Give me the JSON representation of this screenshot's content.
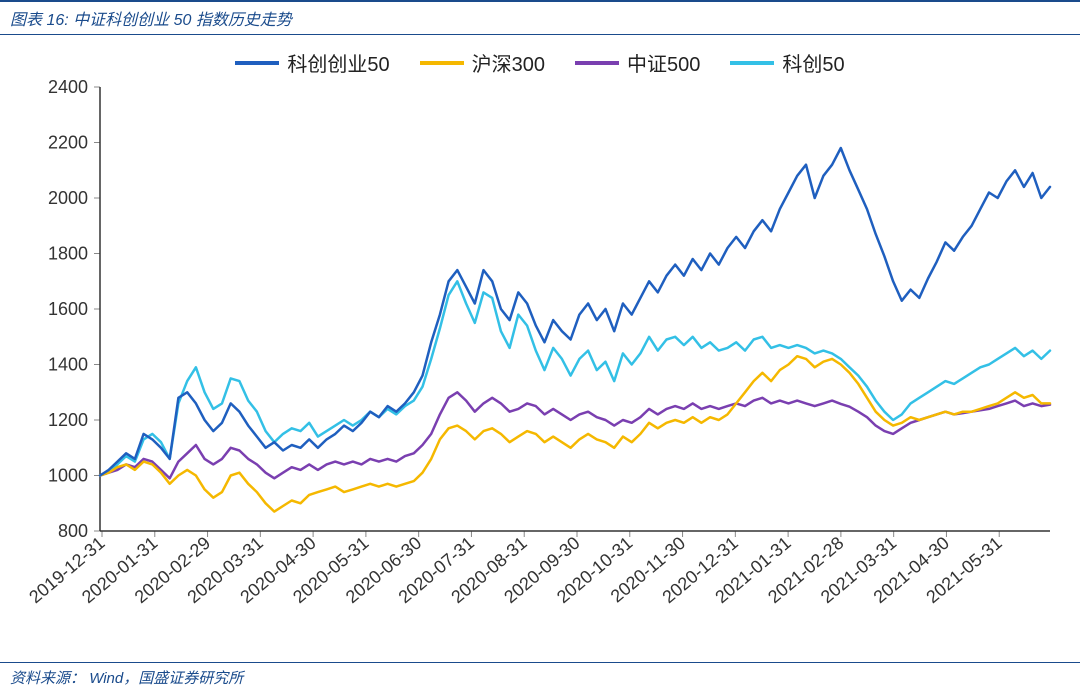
{
  "header": {
    "prefix": "图表 16:",
    "title": "中证科创创业 50 指数历史走势"
  },
  "footer": {
    "label": "资料来源：",
    "source": "Wind，国盛证券研究所"
  },
  "chart": {
    "type": "line",
    "background_color": "#ffffff",
    "axis_color": "#333333",
    "tick_color": "#7a7a7a",
    "label_fontsize": 18,
    "legend_fontsize": 20,
    "line_width": 2.5,
    "y": {
      "min": 800,
      "max": 2400,
      "step": 200
    },
    "x_labels": [
      "2019-12-31",
      "2020-01-31",
      "2020-02-29",
      "2020-03-31",
      "2020-04-30",
      "2020-05-31",
      "2020-06-30",
      "2020-07-31",
      "2020-08-31",
      "2020-09-30",
      "2020-10-31",
      "2020-11-30",
      "2020-12-31",
      "2021-01-31",
      "2021-02-28",
      "2021-03-31",
      "2021-04-30",
      "2021-05-31"
    ],
    "series": [
      {
        "name": "科创创业50",
        "color": "#1f5fbf",
        "values": [
          1000,
          1020,
          1050,
          1080,
          1060,
          1150,
          1130,
          1100,
          1060,
          1280,
          1300,
          1260,
          1200,
          1160,
          1190,
          1260,
          1230,
          1180,
          1140,
          1100,
          1120,
          1090,
          1110,
          1100,
          1130,
          1100,
          1130,
          1150,
          1180,
          1160,
          1190,
          1230,
          1210,
          1250,
          1230,
          1260,
          1300,
          1360,
          1480,
          1580,
          1700,
          1740,
          1680,
          1620,
          1740,
          1700,
          1600,
          1560,
          1660,
          1620,
          1540,
          1480,
          1560,
          1520,
          1490,
          1580,
          1620,
          1560,
          1600,
          1520,
          1620,
          1580,
          1640,
          1700,
          1660,
          1720,
          1760,
          1720,
          1780,
          1740,
          1800,
          1760,
          1820,
          1860,
          1820,
          1880,
          1920,
          1880,
          1960,
          2020,
          2080,
          2120,
          2000,
          2080,
          2120,
          2180,
          2100,
          2030,
          1960,
          1870,
          1790,
          1700,
          1630,
          1670,
          1640,
          1710,
          1770,
          1840,
          1810,
          1860,
          1900,
          1960,
          2020,
          2000,
          2060,
          2100,
          2040,
          2090,
          2000,
          2040
        ]
      },
      {
        "name": "沪深300",
        "color": "#f5b800",
        "values": [
          1000,
          1010,
          1030,
          1040,
          1020,
          1050,
          1040,
          1010,
          970,
          1000,
          1020,
          1000,
          950,
          920,
          940,
          1000,
          1010,
          970,
          940,
          900,
          870,
          890,
          910,
          900,
          930,
          940,
          950,
          960,
          940,
          950,
          960,
          970,
          960,
          970,
          960,
          970,
          980,
          1010,
          1060,
          1130,
          1170,
          1180,
          1160,
          1130,
          1160,
          1170,
          1150,
          1120,
          1140,
          1160,
          1150,
          1120,
          1140,
          1120,
          1100,
          1130,
          1150,
          1130,
          1120,
          1100,
          1140,
          1120,
          1150,
          1190,
          1170,
          1190,
          1200,
          1190,
          1210,
          1190,
          1210,
          1200,
          1220,
          1260,
          1300,
          1340,
          1370,
          1340,
          1380,
          1400,
          1430,
          1420,
          1390,
          1410,
          1420,
          1400,
          1370,
          1330,
          1280,
          1230,
          1200,
          1180,
          1190,
          1210,
          1200,
          1210,
          1220,
          1230,
          1220,
          1230,
          1230,
          1240,
          1250,
          1260,
          1280,
          1300,
          1280,
          1290,
          1260,
          1260
        ]
      },
      {
        "name": "中证500",
        "color": "#7a3fb0",
        "values": [
          1000,
          1010,
          1020,
          1040,
          1030,
          1060,
          1050,
          1020,
          990,
          1050,
          1080,
          1110,
          1060,
          1040,
          1060,
          1100,
          1090,
          1060,
          1040,
          1010,
          990,
          1010,
          1030,
          1020,
          1040,
          1020,
          1040,
          1050,
          1040,
          1050,
          1040,
          1060,
          1050,
          1060,
          1050,
          1070,
          1080,
          1110,
          1150,
          1220,
          1280,
          1300,
          1270,
          1230,
          1260,
          1280,
          1260,
          1230,
          1240,
          1260,
          1250,
          1220,
          1240,
          1220,
          1200,
          1220,
          1230,
          1210,
          1200,
          1180,
          1200,
          1190,
          1210,
          1240,
          1220,
          1240,
          1250,
          1240,
          1260,
          1240,
          1250,
          1240,
          1250,
          1260,
          1250,
          1270,
          1280,
          1260,
          1270,
          1260,
          1270,
          1260,
          1250,
          1260,
          1270,
          1258,
          1248,
          1230,
          1210,
          1180,
          1160,
          1150,
          1170,
          1190,
          1200,
          1210,
          1220,
          1230,
          1220,
          1225,
          1230,
          1235,
          1240,
          1250,
          1260,
          1270,
          1250,
          1260,
          1250,
          1255
        ]
      },
      {
        "name": "科创50",
        "color": "#33c0e6",
        "values": [
          1000,
          1010,
          1040,
          1070,
          1050,
          1130,
          1150,
          1120,
          1060,
          1260,
          1340,
          1390,
          1300,
          1240,
          1260,
          1350,
          1340,
          1270,
          1230,
          1160,
          1120,
          1150,
          1170,
          1160,
          1190,
          1140,
          1160,
          1180,
          1200,
          1180,
          1200,
          1230,
          1210,
          1240,
          1220,
          1250,
          1270,
          1320,
          1420,
          1530,
          1650,
          1700,
          1620,
          1550,
          1660,
          1640,
          1520,
          1460,
          1580,
          1540,
          1450,
          1380,
          1460,
          1420,
          1360,
          1420,
          1450,
          1380,
          1410,
          1340,
          1440,
          1400,
          1440,
          1500,
          1450,
          1490,
          1500,
          1470,
          1500,
          1460,
          1480,
          1450,
          1460,
          1480,
          1450,
          1490,
          1500,
          1460,
          1470,
          1460,
          1470,
          1460,
          1440,
          1450,
          1440,
          1420,
          1390,
          1360,
          1320,
          1270,
          1230,
          1200,
          1220,
          1260,
          1280,
          1300,
          1320,
          1340,
          1330,
          1350,
          1370,
          1390,
          1400,
          1420,
          1440,
          1460,
          1430,
          1450,
          1420,
          1450
        ]
      }
    ]
  }
}
